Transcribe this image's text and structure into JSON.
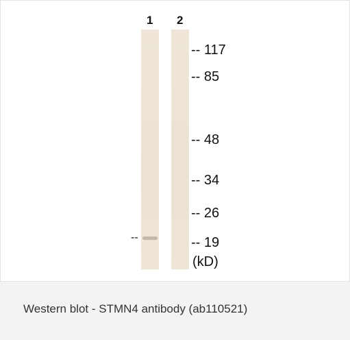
{
  "figure": {
    "lane_labels": [
      "1",
      "2"
    ],
    "markers": [
      "-- 117",
      "-- 85",
      "-- 48",
      "-- 34",
      "-- 26",
      "-- 19"
    ],
    "unit": "(kD)",
    "band_marker": "--",
    "caption": "Western blot - STMN4 antibody (ab110521)"
  }
}
